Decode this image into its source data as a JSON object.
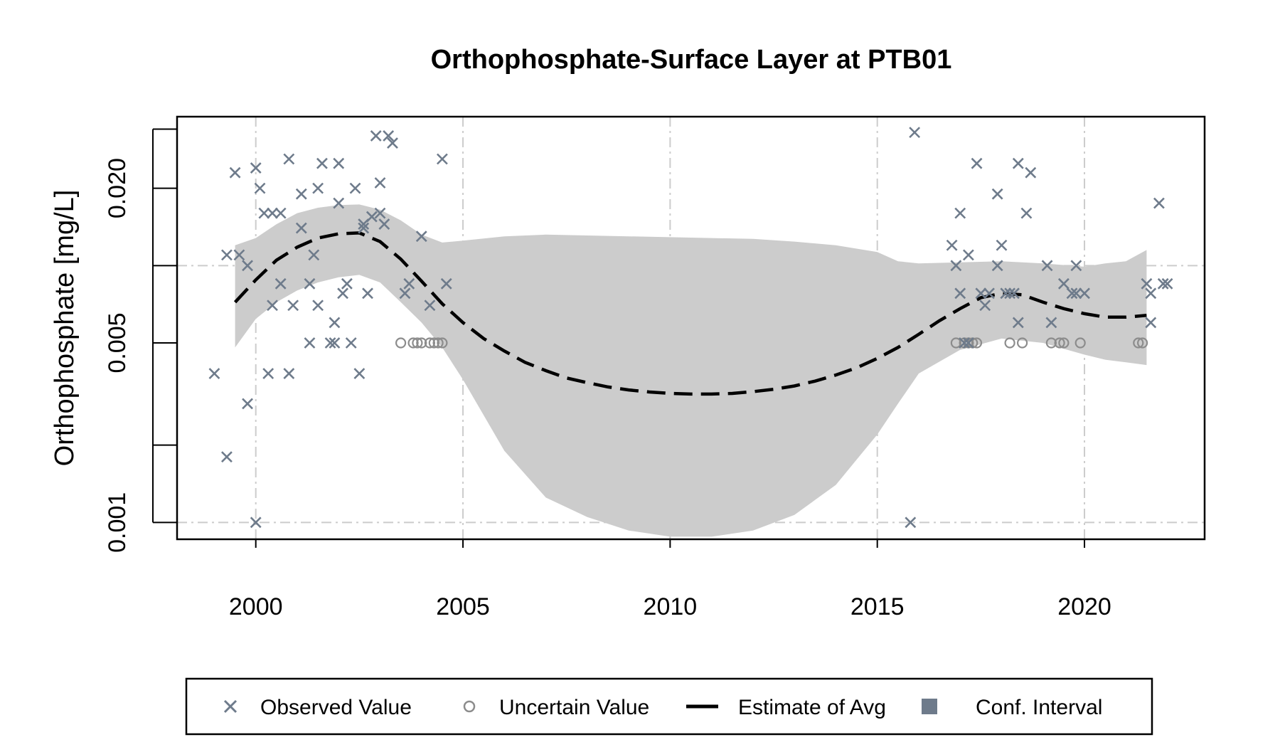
{
  "chart_data": {
    "type": "scatter",
    "title": "Orthophosphate-Surface Layer at PTB01",
    "xlabel": "",
    "ylabel": "Orthophosphate [mg/L]",
    "y_scale": "log",
    "xlim": [
      1998.1,
      2022.9
    ],
    "ylim": [
      0.00086,
      0.038
    ],
    "x_ticks": [
      2000,
      2005,
      2010,
      2015,
      2020
    ],
    "x_tick_labels": [
      "2000",
      "2005",
      "2010",
      "2015",
      "2020"
    ],
    "y_ticks": [
      0.001,
      0.002,
      0.005,
      0.01,
      0.02,
      0.034
    ],
    "y_tick_labels": [
      "0.001",
      "",
      "0.005",
      "",
      "0.020",
      ""
    ],
    "grid": true,
    "legend_position": "bottom",
    "colors": {
      "observed": "#6e7b8b",
      "uncertain": "#8c8c8c",
      "estimate": "#000000",
      "conf_fill": "#cccccc",
      "legend_conf_swatch": "#6e7b8b",
      "grid": "#cccccc"
    },
    "legend": [
      {
        "label": "Observed Value",
        "symbol": "x"
      },
      {
        "label": "Uncertain Value",
        "symbol": "circle"
      },
      {
        "label": "Estimate of Avg",
        "symbol": "dash-line"
      },
      {
        "label": "Conf. Interval",
        "symbol": "square"
      }
    ],
    "series": [
      {
        "name": "Observed Value",
        "points": [
          [
            1999.0,
            0.0038
          ],
          [
            1999.3,
            0.0018
          ],
          [
            1999.3,
            0.011
          ],
          [
            1999.6,
            0.011
          ],
          [
            1999.5,
            0.023
          ],
          [
            1999.8,
            0.01
          ],
          [
            1999.8,
            0.0029
          ],
          [
            2000.0,
            0.001
          ],
          [
            2000.0,
            0.024
          ],
          [
            2000.1,
            0.02
          ],
          [
            2000.2,
            0.016
          ],
          [
            2000.4,
            0.016
          ],
          [
            2000.6,
            0.016
          ],
          [
            2000.3,
            0.0038
          ],
          [
            2000.4,
            0.007
          ],
          [
            2000.6,
            0.0085
          ],
          [
            2000.8,
            0.0038
          ],
          [
            2000.8,
            0.026
          ],
          [
            2000.9,
            0.007
          ],
          [
            2001.1,
            0.014
          ],
          [
            2001.1,
            0.019
          ],
          [
            2001.3,
            0.005
          ],
          [
            2001.3,
            0.0085
          ],
          [
            2001.4,
            0.011
          ],
          [
            2001.5,
            0.02
          ],
          [
            2001.5,
            0.007
          ],
          [
            2001.6,
            0.025
          ],
          [
            2001.8,
            0.005
          ],
          [
            2001.9,
            0.005
          ],
          [
            2001.9,
            0.006
          ],
          [
            2002.0,
            0.0175
          ],
          [
            2002.0,
            0.025
          ],
          [
            2002.1,
            0.0078
          ],
          [
            2002.2,
            0.0085
          ],
          [
            2002.3,
            0.005
          ],
          [
            2002.4,
            0.02
          ],
          [
            2002.5,
            0.0038
          ],
          [
            2002.6,
            0.014
          ],
          [
            2002.6,
            0.0145
          ],
          [
            2002.7,
            0.0078
          ],
          [
            2002.8,
            0.0155
          ],
          [
            2002.9,
            0.032
          ],
          [
            2003.0,
            0.016
          ],
          [
            2003.0,
            0.021
          ],
          [
            2003.1,
            0.0145
          ],
          [
            2003.2,
            0.032
          ],
          [
            2003.3,
            0.03
          ],
          [
            2003.6,
            0.0078
          ],
          [
            2003.7,
            0.0085
          ],
          [
            2004.0,
            0.013
          ],
          [
            2004.2,
            0.007
          ],
          [
            2004.5,
            0.026
          ],
          [
            2004.6,
            0.0085
          ],
          [
            2015.8,
            0.001
          ],
          [
            2015.9,
            0.033
          ],
          [
            2017.4,
            0.025
          ],
          [
            2017.0,
            0.016
          ],
          [
            2016.8,
            0.012
          ],
          [
            2016.9,
            0.01
          ],
          [
            2017.0,
            0.0078
          ],
          [
            2017.1,
            0.005
          ],
          [
            2017.2,
            0.005
          ],
          [
            2017.2,
            0.011
          ],
          [
            2017.5,
            0.0078
          ],
          [
            2017.6,
            0.007
          ],
          [
            2017.7,
            0.0078
          ],
          [
            2017.9,
            0.019
          ],
          [
            2017.9,
            0.01
          ],
          [
            2018.0,
            0.012
          ],
          [
            2018.1,
            0.0078
          ],
          [
            2018.2,
            0.0078
          ],
          [
            2018.3,
            0.0078
          ],
          [
            2018.4,
            0.006
          ],
          [
            2018.4,
            0.025
          ],
          [
            2018.6,
            0.016
          ],
          [
            2018.7,
            0.023
          ],
          [
            2019.1,
            0.01
          ],
          [
            2019.2,
            0.006
          ],
          [
            2019.5,
            0.0085
          ],
          [
            2019.7,
            0.0078
          ],
          [
            2019.8,
            0.0078
          ],
          [
            2019.8,
            0.01
          ],
          [
            2020.0,
            0.0078
          ],
          [
            2021.5,
            0.0085
          ],
          [
            2021.6,
            0.006
          ],
          [
            2021.6,
            0.0078
          ],
          [
            2021.8,
            0.0175
          ],
          [
            2021.9,
            0.0085
          ],
          [
            2022.0,
            0.0085
          ]
        ]
      },
      {
        "name": "Uncertain Value",
        "points": [
          [
            2003.5,
            0.005
          ],
          [
            2003.8,
            0.005
          ],
          [
            2003.9,
            0.005
          ],
          [
            2004.0,
            0.005
          ],
          [
            2004.2,
            0.005
          ],
          [
            2004.3,
            0.005
          ],
          [
            2004.4,
            0.005
          ],
          [
            2004.5,
            0.005
          ],
          [
            2016.9,
            0.005
          ],
          [
            2017.1,
            0.005
          ],
          [
            2017.2,
            0.005
          ],
          [
            2017.3,
            0.005
          ],
          [
            2017.4,
            0.005
          ],
          [
            2018.2,
            0.005
          ],
          [
            2018.5,
            0.005
          ],
          [
            2019.2,
            0.005
          ],
          [
            2019.4,
            0.005
          ],
          [
            2019.5,
            0.005
          ],
          [
            2019.9,
            0.005
          ],
          [
            2021.3,
            0.005
          ],
          [
            2021.4,
            0.005
          ]
        ]
      },
      {
        "name": "Estimate of Avg",
        "points": [
          [
            1999.5,
            0.0072
          ],
          [
            2000.0,
            0.0088
          ],
          [
            2000.5,
            0.0105
          ],
          [
            2001.0,
            0.0118
          ],
          [
            2001.5,
            0.0128
          ],
          [
            2002.0,
            0.0133
          ],
          [
            2002.5,
            0.0134
          ],
          [
            2003.0,
            0.0124
          ],
          [
            2003.5,
            0.0106
          ],
          [
            2004.0,
            0.0087
          ],
          [
            2004.5,
            0.0071
          ],
          [
            2005.0,
            0.006
          ],
          [
            2005.5,
            0.0052
          ],
          [
            2006.0,
            0.00465
          ],
          [
            2006.5,
            0.0042
          ],
          [
            2007.0,
            0.0039
          ],
          [
            2007.5,
            0.00365
          ],
          [
            2008.0,
            0.0035
          ],
          [
            2008.5,
            0.00337
          ],
          [
            2009.0,
            0.00328
          ],
          [
            2009.5,
            0.00322
          ],
          [
            2010.0,
            0.00318
          ],
          [
            2010.5,
            0.00316
          ],
          [
            2011.0,
            0.00316
          ],
          [
            2011.5,
            0.00318
          ],
          [
            2012.0,
            0.00323
          ],
          [
            2012.5,
            0.0033
          ],
          [
            2013.0,
            0.0034
          ],
          [
            2013.5,
            0.00355
          ],
          [
            2014.0,
            0.00375
          ],
          [
            2014.5,
            0.004
          ],
          [
            2015.0,
            0.00435
          ],
          [
            2015.5,
            0.0048
          ],
          [
            2016.0,
            0.0054
          ],
          [
            2016.5,
            0.0061
          ],
          [
            2017.0,
            0.0068
          ],
          [
            2017.5,
            0.0075
          ],
          [
            2018.0,
            0.0078
          ],
          [
            2018.5,
            0.0077
          ],
          [
            2019.0,
            0.0072
          ],
          [
            2019.5,
            0.0068
          ],
          [
            2020.0,
            0.0065
          ],
          [
            2020.5,
            0.0063
          ],
          [
            2021.0,
            0.0063
          ],
          [
            2021.5,
            0.0064
          ]
        ]
      },
      {
        "name": "Conf. Interval",
        "x": [
          1999.5,
          2000.0,
          2000.5,
          2001.0,
          2001.5,
          2002.0,
          2002.5,
          2003.0,
          2003.5,
          2004.0,
          2004.5,
          2005.0,
          2006.0,
          2007.0,
          2008.0,
          2009.0,
          2010.0,
          2011.0,
          2012.0,
          2013.0,
          2014.0,
          2015.0,
          2015.5,
          2016.0,
          2017.0,
          2018.0,
          2019.0,
          2020.0,
          2020.5,
          2021.0,
          2021.5
        ],
        "lower": [
          0.0048,
          0.0062,
          0.0072,
          0.008,
          0.0086,
          0.009,
          0.0092,
          0.0086,
          0.0072,
          0.006,
          0.0048,
          0.0036,
          0.0019,
          0.00125,
          0.00105,
          0.00093,
          0.00088,
          0.00088,
          0.00093,
          0.00107,
          0.0014,
          0.0022,
          0.0029,
          0.0038,
          0.0047,
          0.0052,
          0.005,
          0.0045,
          0.0043,
          0.0042,
          0.0041
        ],
        "upper": [
          0.012,
          0.0128,
          0.0145,
          0.016,
          0.0168,
          0.0172,
          0.0173,
          0.0165,
          0.015,
          0.0132,
          0.0123,
          0.0125,
          0.013,
          0.0132,
          0.0131,
          0.013,
          0.0129,
          0.0128,
          0.0127,
          0.0124,
          0.012,
          0.0113,
          0.0104,
          0.0102,
          0.0103,
          0.0104,
          0.0102,
          0.0099,
          0.0102,
          0.0104,
          0.0115
        ]
      }
    ]
  }
}
